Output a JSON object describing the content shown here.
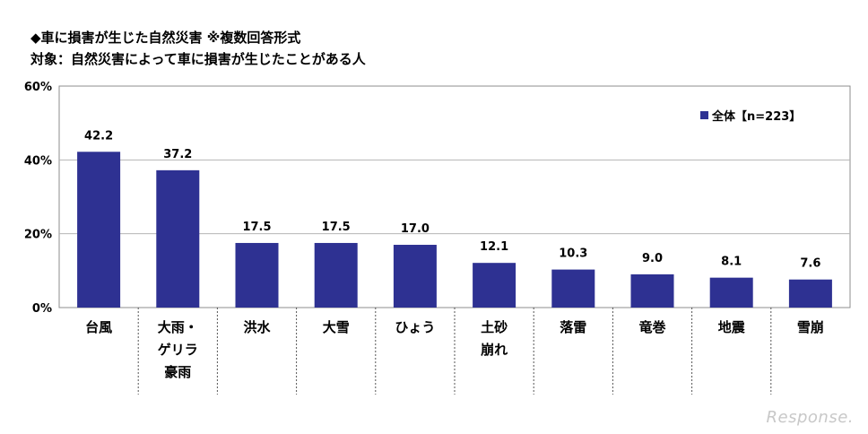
{
  "title": "◆車に損害が生じた自然災害 ※複数回答形式",
  "subtitle": "対象：自然災害によって車に損害が生じたことがある人",
  "watermark": "Response.",
  "chart_data": {
    "type": "bar",
    "categories": [
      [
        "台風"
      ],
      [
        "大雨・",
        "ゲリラ",
        "豪雨"
      ],
      [
        "洪水"
      ],
      [
        "大雪"
      ],
      [
        "ひょう"
      ],
      [
        "土砂",
        "崩れ"
      ],
      [
        "落雷"
      ],
      [
        "竜巻"
      ],
      [
        "地震"
      ],
      [
        "雪崩"
      ]
    ],
    "series": [
      {
        "name": "全体【n=223】",
        "values": [
          42.2,
          37.2,
          17.5,
          17.5,
          17.0,
          12.1,
          10.3,
          9.0,
          8.1,
          7.6
        ],
        "color": "#2e3192"
      }
    ],
    "value_labels": [
      "42.2",
      "37.2",
      "17.5",
      "17.5",
      "17.0",
      "12.1",
      "10.3",
      "9.0",
      "8.1",
      "7.6"
    ],
    "ylim": [
      0,
      60
    ],
    "yticks": [
      "0%",
      "20%",
      "40%",
      "60%"
    ],
    "ytick_values": [
      0,
      20,
      40,
      60
    ],
    "grid": true,
    "legend_position": "top-right"
  }
}
